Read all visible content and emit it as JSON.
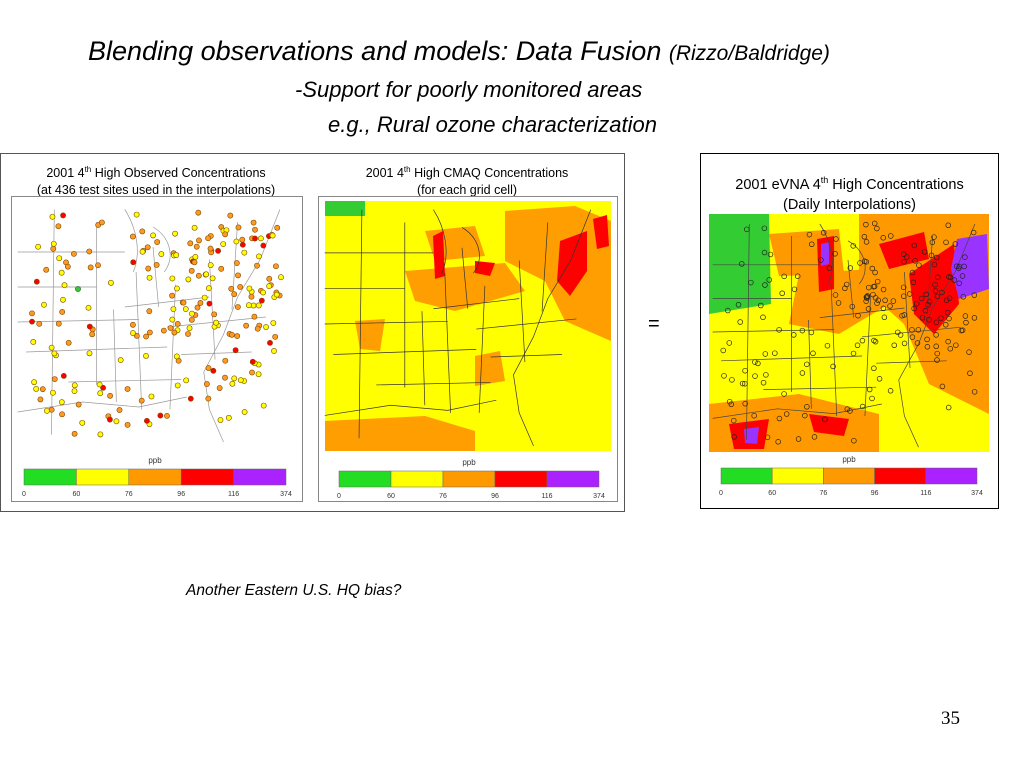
{
  "slide": {
    "title_main": "Blending observations and models: Data Fusion",
    "title_authors": "(Rizzo/Baldridge)",
    "subtitle_1": "-Support for poorly monitored areas",
    "subtitle_2": "e.g., Rural ozone characterization",
    "equals_sign": "=",
    "question": "Another Eastern U.S. HQ bias?",
    "page_number": "35"
  },
  "panels": [
    {
      "caption_pre": "2001 4",
      "caption_sup": "th",
      "caption_post": " High Observed Concentrations",
      "caption_line2": "(at 436 test sites used in the interpolations)",
      "map_type": "observed-sites"
    },
    {
      "caption_pre": "2001 4",
      "caption_sup": "th",
      "caption_post": " High CMAQ Concentrations",
      "caption_line2": "(for each grid cell)",
      "map_type": "model-grid"
    },
    {
      "caption_pre": "2001 eVNA 4",
      "caption_sup": "th",
      "caption_post": " High Concentrations",
      "caption_line2": "(Daily Interpolations)",
      "map_type": "interpolated"
    }
  ],
  "legend": {
    "unit": "ppb",
    "ticks": [
      "0",
      "60",
      "76",
      "96",
      "116",
      "374"
    ],
    "colors": [
      "#22dd22",
      "#ffff00",
      "#ff9900",
      "#ff0000",
      "#aa22ff"
    ]
  },
  "palette": {
    "yellow": "#ffff00",
    "orange": "#ff9900",
    "red": "#ff0000",
    "purple": "#9933ff",
    "green": "#33cc33",
    "site_marker": "#ff9922"
  }
}
